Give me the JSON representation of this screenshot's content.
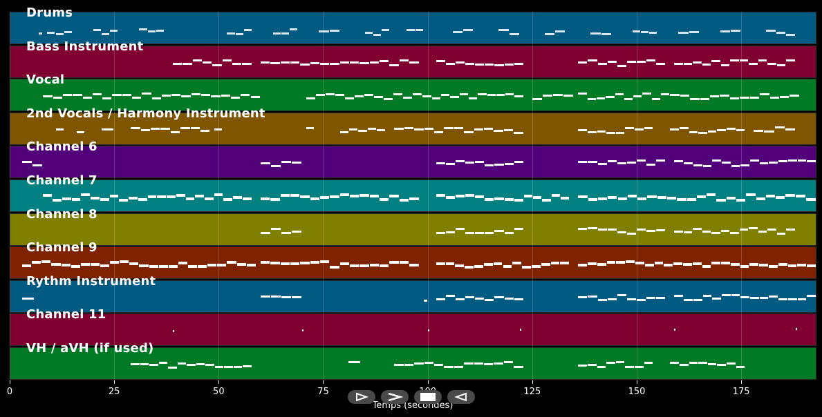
{
  "chart_data": {
    "type": "piano-roll",
    "xlabel": "Temps (secondes)",
    "x_ticks": [
      0,
      25,
      50,
      75,
      100,
      125,
      150,
      175
    ],
    "xlim": [
      0,
      193
    ],
    "tracks": [
      {
        "name": "Drums",
        "color": "#005a82",
        "segments": [
          [
            7,
            8
          ],
          [
            9,
            15
          ],
          [
            20,
            26
          ],
          [
            31,
            37
          ],
          [
            52,
            58
          ],
          [
            63,
            69
          ],
          [
            74,
            79
          ],
          [
            85,
            91
          ],
          [
            95,
            99
          ],
          [
            106,
            111
          ],
          [
            117,
            122
          ],
          [
            128,
            133
          ],
          [
            139,
            144
          ],
          [
            149,
            155
          ],
          [
            160,
            165
          ],
          [
            170,
            175
          ],
          [
            181,
            188
          ]
        ],
        "drum": true
      },
      {
        "name": "Bass Instrument",
        "color": "#7f0030",
        "segments": [
          [
            39,
            58
          ],
          [
            60,
            98
          ],
          [
            102,
            123
          ],
          [
            136,
            157
          ],
          [
            159,
            188
          ]
        ]
      },
      {
        "name": "Vocal",
        "color": "#007a25",
        "segments": [
          [
            8,
            60
          ],
          [
            71,
            101
          ],
          [
            101,
            123
          ],
          [
            125,
            135
          ],
          [
            136,
            158
          ],
          [
            158,
            189
          ]
        ]
      },
      {
        "name": "2nd Vocals / Harmony Instrument",
        "color": "#7f5500",
        "segments": [
          [
            11,
            13
          ],
          [
            16,
            18
          ],
          [
            22,
            25
          ],
          [
            29,
            48
          ],
          [
            49,
            51
          ],
          [
            71,
            73
          ],
          [
            79,
            90
          ],
          [
            92,
            123
          ],
          [
            136,
            154
          ],
          [
            158,
            176
          ],
          [
            178,
            188
          ]
        ]
      },
      {
        "name": "Channel 6",
        "color": "#52007a",
        "segments": [
          [
            3,
            8
          ],
          [
            60,
            70
          ],
          [
            102,
            123
          ],
          [
            136,
            157
          ],
          [
            159,
            193
          ]
        ]
      },
      {
        "name": "Channel 7",
        "color": "#008080",
        "segments": [
          [
            8,
            58
          ],
          [
            60,
            98
          ],
          [
            102,
            123
          ],
          [
            123,
            134
          ],
          [
            136,
            188
          ],
          [
            188,
            193
          ]
        ]
      },
      {
        "name": "Channel 8",
        "color": "#807f00",
        "segments": [
          [
            60,
            70
          ],
          [
            102,
            123
          ],
          [
            136,
            157
          ],
          [
            159,
            188
          ]
        ]
      },
      {
        "name": "Channel 9",
        "color": "#7f2200",
        "segments": [
          [
            3,
            59
          ],
          [
            60,
            98
          ],
          [
            102,
            134
          ],
          [
            136,
            193
          ]
        ]
      },
      {
        "name": "Rythm Instrument",
        "color": "#005a82",
        "segments": [
          [
            3,
            6
          ],
          [
            60,
            70
          ],
          [
            99,
            100
          ],
          [
            102,
            123
          ],
          [
            136,
            157
          ],
          [
            159,
            193
          ]
        ]
      },
      {
        "name": "Channel 11",
        "color": "#7f0030",
        "segments": [
          [
            39,
            39.5
          ],
          [
            70,
            70.5
          ],
          [
            100,
            100.5
          ],
          [
            122,
            122.5
          ],
          [
            159,
            159.5
          ],
          [
            188,
            188.5
          ]
        ]
      },
      {
        "name": "VH / aVH (if used)",
        "color": "#007a25",
        "segments": [
          [
            29,
            58
          ],
          [
            81,
            84
          ],
          [
            92,
            123
          ],
          [
            136,
            154
          ],
          [
            158,
            176
          ]
        ]
      }
    ]
  },
  "controls": {
    "play_icon": "play-outline-icon",
    "forward_icon": "forward-chevron-icon",
    "stop_icon": "stop-icon",
    "back_icon": "back-triangle-icon"
  }
}
